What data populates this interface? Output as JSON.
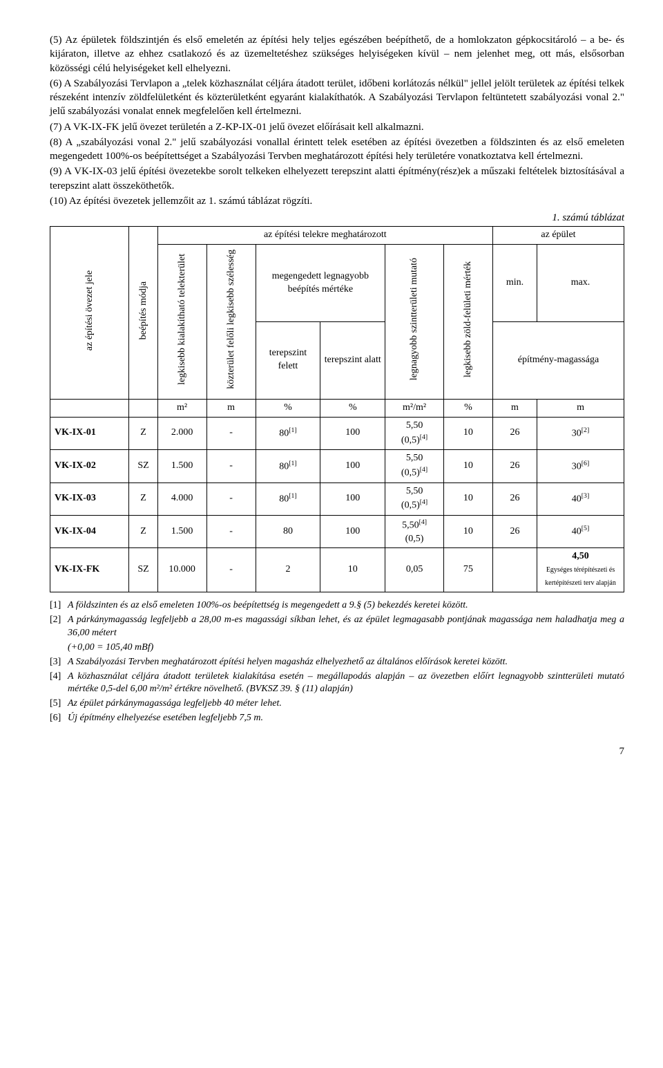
{
  "paragraphs": {
    "p5": "(5) Az épületek földszintjén és első emeletén az építési hely teljes egészében beépíthető, de a homlokzaton gépkocsitároló – a be- és kijáraton, illetve az ehhez csatlakozó és az üzemeltetéshez szükséges helyiségeken kívül – nem jelenhet meg, ott más, elsősorban közösségi célú helyiségeket kell elhelyezni.",
    "p6": "(6) A Szabályozási Tervlapon a „telek közhasználat céljára átadott terület, időbeni korlátozás nélkül\" jellel jelölt területek az építési telkek részeként intenzív zöldfelületként és közterületként egyaránt kialakíthatók. A Szabályozási Tervlapon feltüntetett szabályozási vonal 2.\" jelű szabályozási vonalat ennek megfelelően kell értelmezni.",
    "p7": "(7) A VK-IX-FK jelű övezet területén a Z-KP-IX-01 jelű övezet előírásait kell alkalmazni.",
    "p8": "(8) A „szabályozási vonal 2.\" jelű szabályozási vonallal érintett telek esetében az építési övezetben a földszinten és az első emeleten megengedett 100%-os beépítettséget a Szabályozási Tervben meghatározott építési hely területére vonatkoztatva kell értelmezni.",
    "p9": "(9) A VK-IX-03 jelű építési övezetekbe sorolt telkeken elhelyezett terepszint alatti építmény(rész)ek a műszaki feltételek biztosításával a terepszint alatt összeköthetők.",
    "p10": "(10) Az építési övezetek jellemzőit az 1. számú táblázat rögzíti."
  },
  "table": {
    "caption": "1. számú táblázat",
    "groupHeaders": {
      "telekre": "az építési telekre meghatározott",
      "epulet": "az épület",
      "megengedett": "megengedett legnagyobb beépítés mértéke"
    },
    "headers": {
      "ovezet": "az építési övezet jele",
      "beepites": "beépítés módja",
      "legkisebb_telek": "legkisebb kialakítható telekterület",
      "kozterulet": "közterület felőli legkisebb szélesség",
      "felett": "terepszint felett",
      "alatt": "terepszint alatt",
      "szintterulet": "legnagyobb szintterületi mutató",
      "zold": "legkisebb zöld-felületi mérték",
      "min": "min.",
      "max": "max.",
      "magassag": "építmény-magassága"
    },
    "units": [
      "",
      "",
      "m²",
      "m",
      "%",
      "%",
      "m²/m²",
      "%",
      "m",
      "m"
    ],
    "rows": [
      {
        "id": "VK-IX-01",
        "mod": "Z",
        "telek": "2.000",
        "koz": "-",
        "felett": "80",
        "felett_fn": "[1]",
        "alatt": "100",
        "szint": "5,50",
        "szint_sub": "(0,5)",
        "szint_fn": "[4]",
        "zold": "10",
        "min": "26",
        "max": "30",
        "max_fn": "[2]"
      },
      {
        "id": "VK-IX-02",
        "mod": "SZ",
        "telek": "1.500",
        "koz": "-",
        "felett": "80",
        "felett_fn": "[1]",
        "alatt": "100",
        "szint": "5,50",
        "szint_sub": "(0,5)",
        "szint_fn": "[4]",
        "zold": "10",
        "min": "26",
        "max": "30",
        "max_fn": "[6]"
      },
      {
        "id": "VK-IX-03",
        "mod": "Z",
        "telek": "4.000",
        "koz": "-",
        "felett": "80",
        "felett_fn": "[1]",
        "alatt": "100",
        "szint": "5,50",
        "szint_sub": "(0,5)",
        "szint_fn": "[4]",
        "zold": "10",
        "min": "26",
        "max": "40",
        "max_fn": "[3]"
      },
      {
        "id": "VK-IX-04",
        "mod": "Z",
        "telek": "1.500",
        "koz": "-",
        "felett": "80",
        "felett_fn": "",
        "alatt": "100",
        "szint": "5,50",
        "szint_sub": "(0,5)",
        "szint_fn": "[4]",
        "zold": "10",
        "min": "26",
        "max": "40",
        "max_fn": "[5]"
      },
      {
        "id": "VK-IX-FK",
        "mod": "SZ",
        "telek": "10.000",
        "koz": "-",
        "felett": "2",
        "felett_fn": "",
        "alatt": "10",
        "szint": "0,05",
        "szint_sub": "",
        "szint_fn": "",
        "zold": "75",
        "min": "",
        "max": "4,50",
        "max_extra": "Egységes térépítészeti és kertépítészeti terv alapján"
      }
    ]
  },
  "footnotes": [
    {
      "mark": "[1]",
      "text": "A földszinten és az első emeleten 100%-os beépítettség is megengedett a 9.§ (5) bekezdés keretei között."
    },
    {
      "mark": "[2]",
      "text": "A párkánymagasság legfeljebb a 28,00 m-es magassági síkban lehet, és az épület legmagasabb pontjának magassága nem haladhatja meg a 36,00 métert"
    },
    {
      "mark": "",
      "text": "(+0,00 = 105,40 mBf)"
    },
    {
      "mark": "[3]",
      "text": "A Szabályozási Tervben meghatározott építési helyen magasház elhelyezhető az általános előírások keretei között."
    },
    {
      "mark": "[4]",
      "text": "A közhasználat céljára átadott területek kialakítása esetén – megállapodás alapján – az övezetben előírt legnagyobb szintterületi mutató mértéke 0,5-del 6,00 m²/m² értékre növelhető. (BVKSZ 39. § (11) alapján)"
    },
    {
      "mark": "[5]",
      "text": "Az épület párkánymagassága legfeljebb 40 méter lehet."
    },
    {
      "mark": "[6]",
      "text": "Új építmény elhelyezése esetében legfeljebb 7,5 m."
    }
  ],
  "pageNumber": "7"
}
